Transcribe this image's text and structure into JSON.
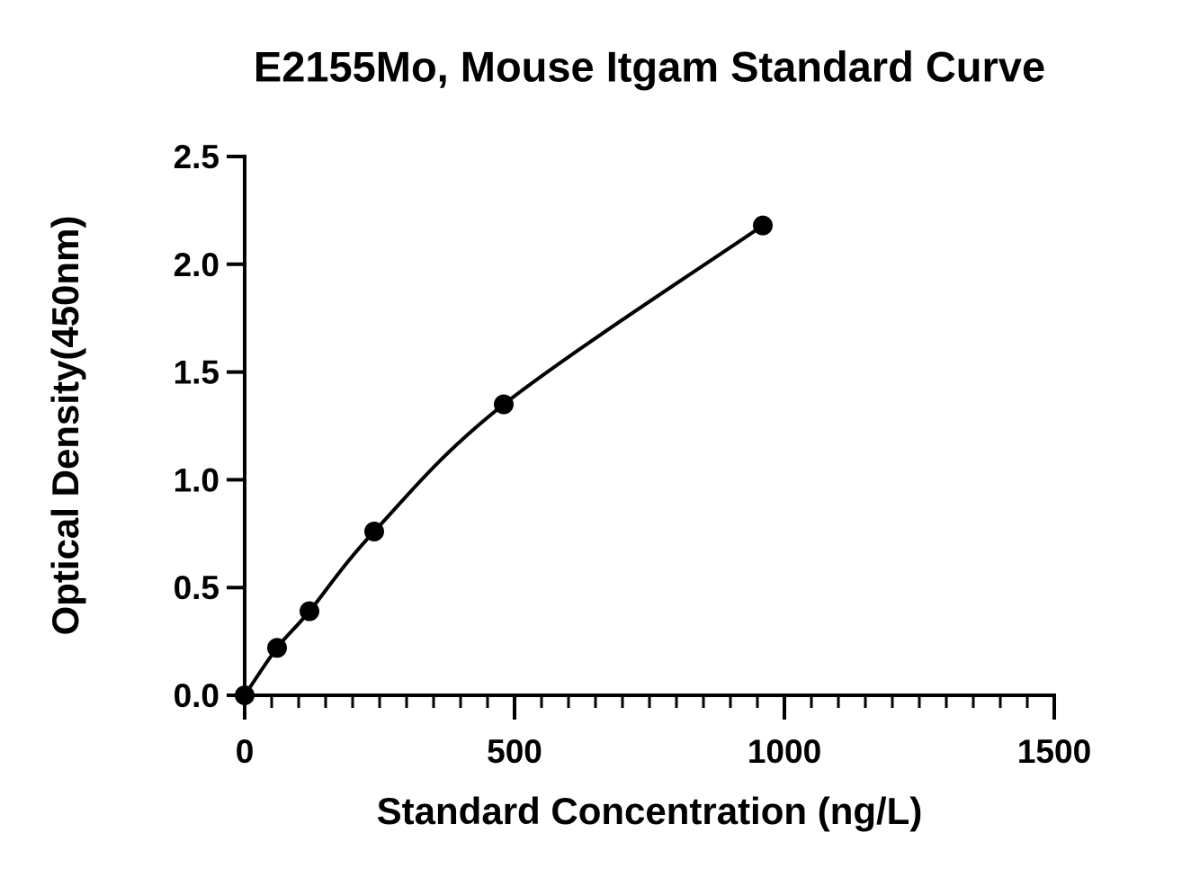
{
  "chart_data": {
    "type": "scatter",
    "title": "E2155Mo, Mouse Itgam Standard Curve",
    "x_label": "Standard Concentration (ng/L)",
    "y_label": "Optical Density(450nm)",
    "x": [
      0,
      60,
      120,
      240,
      480,
      960
    ],
    "values": [
      0,
      0.22,
      0.39,
      0.76,
      1.35,
      2.18
    ],
    "color": "#000000",
    "curve": true,
    "xlim": [
      0,
      1500
    ],
    "xticks": [
      0,
      500,
      1000,
      1500
    ],
    "ylim": [
      0,
      2.5
    ],
    "yticks": [
      {
        "value": 0,
        "label": "0.0"
      },
      0.5,
      {
        "value": 1,
        "label": "1.0"
      },
      1.5,
      {
        "value": 2,
        "label": "2.0"
      },
      2.5
    ]
  }
}
